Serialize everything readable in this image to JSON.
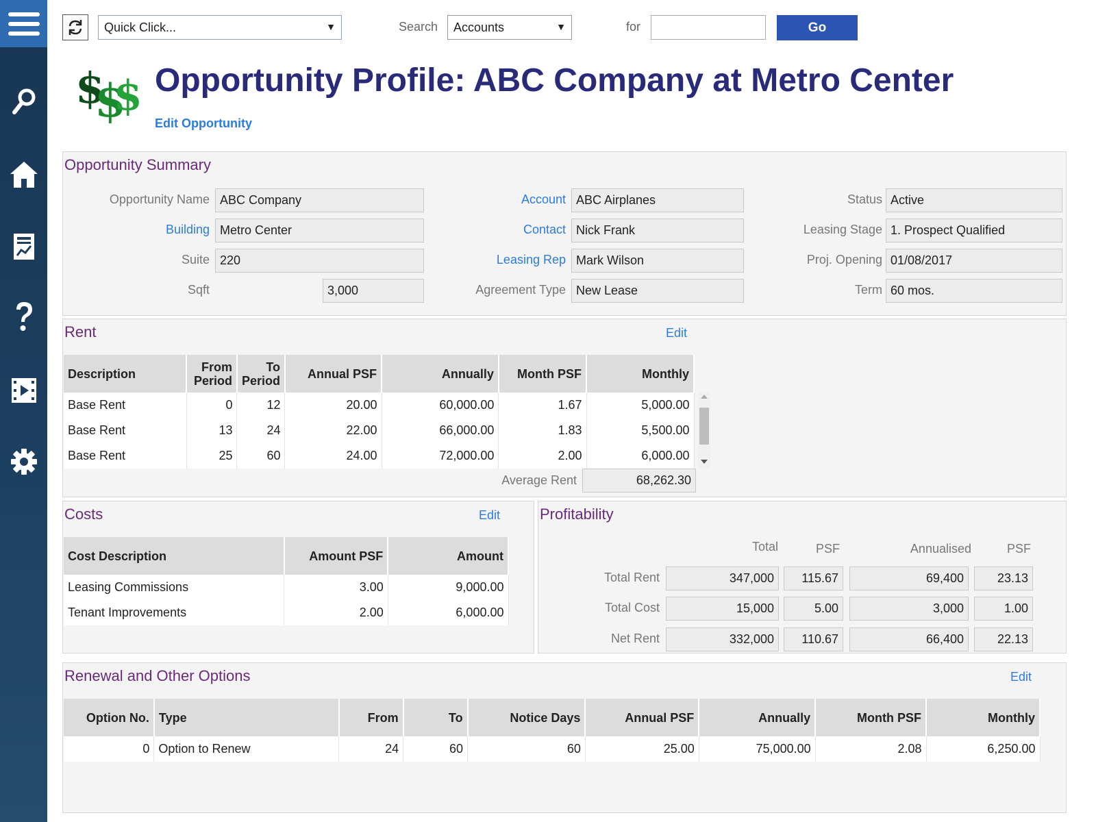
{
  "toolbar": {
    "quick_click": "Quick Click...",
    "search_label": "Search",
    "search_scope": "Accounts",
    "for_label": "for",
    "for_value": "",
    "go_label": "Go"
  },
  "sidebar": {
    "items": [
      "menu-icon",
      "search-icon",
      "home-icon",
      "reports-icon",
      "help-icon",
      "video-icon",
      "settings-icon"
    ]
  },
  "header": {
    "title": "Opportunity Profile: ABC Company at Metro Center",
    "edit_link": "Edit Opportunity"
  },
  "summary": {
    "title": "Opportunity Summary",
    "opportunity_name_label": "Opportunity Name",
    "opportunity_name": "ABC Company",
    "building_label": "Building",
    "building": "Metro Center",
    "suite_label": "Suite",
    "suite": "220",
    "sqft_label": "Sqft",
    "sqft": "3,000",
    "account_label": "Account",
    "account": "ABC Airplanes",
    "contact_label": "Contact",
    "contact": "Nick Frank",
    "leasing_rep_label": "Leasing Rep",
    "leasing_rep": "Mark Wilson",
    "agreement_type_label": "Agreement Type",
    "agreement_type": "New Lease",
    "status_label": "Status",
    "status": "Active",
    "leasing_stage_label": "Leasing Stage",
    "leasing_stage": "1. Prospect Qualified",
    "proj_opening_label": "Proj. Opening",
    "proj_opening": "01/08/2017",
    "term_label": "Term",
    "term": "60 mos."
  },
  "rent": {
    "title": "Rent",
    "edit": "Edit",
    "headers": {
      "description": "Description",
      "from1": "From",
      "from2": "Period",
      "to1": "To",
      "to2": "Period",
      "annual_psf": "Annual PSF",
      "annually": "Annually",
      "month_psf": "Month PSF",
      "monthly": "Monthly"
    },
    "rows": [
      {
        "description": "Base Rent",
        "from": "0",
        "to": "12",
        "annual_psf": "20.00",
        "annually": "60,000.00",
        "month_psf": "1.67",
        "monthly": "5,000.00"
      },
      {
        "description": "Base Rent",
        "from": "13",
        "to": "24",
        "annual_psf": "22.00",
        "annually": "66,000.00",
        "month_psf": "1.83",
        "monthly": "5,500.00"
      },
      {
        "description": "Base Rent",
        "from": "25",
        "to": "60",
        "annual_psf": "24.00",
        "annually": "72,000.00",
        "month_psf": "2.00",
        "monthly": "6,000.00"
      }
    ],
    "average_label": "Average Rent",
    "average_value": "68,262.30"
  },
  "costs": {
    "title": "Costs",
    "edit": "Edit",
    "headers": {
      "description": "Cost Description",
      "amount_psf": "Amount PSF",
      "amount": "Amount"
    },
    "rows": [
      {
        "description": "Leasing Commissions",
        "amount_psf": "3.00",
        "amount": "9,000.00"
      },
      {
        "description": "Tenant Improvements",
        "amount_psf": "2.00",
        "amount": "6,000.00"
      }
    ]
  },
  "profitability": {
    "title": "Profitability",
    "headers": {
      "total": "Total",
      "psf1": "PSF",
      "annualised": "Annualised",
      "psf2": "PSF"
    },
    "rows": [
      {
        "label": "Total Rent",
        "total": "347,000",
        "psf": "115.67",
        "annualised": "69,400",
        "annualised_psf": "23.13"
      },
      {
        "label": "Total Cost",
        "total": "15,000",
        "psf": "5.00",
        "annualised": "3,000",
        "annualised_psf": "1.00"
      },
      {
        "label": "Net Rent",
        "total": "332,000",
        "psf": "110.67",
        "annualised": "66,400",
        "annualised_psf": "22.13"
      }
    ]
  },
  "renewal": {
    "title": "Renewal and Other Options",
    "edit": "Edit",
    "headers": {
      "option_no": "Option No.",
      "type": "Type",
      "from": "From",
      "to": "To",
      "notice_days": "Notice Days",
      "annual_psf": "Annual PSF",
      "annually": "Annually",
      "month_psf": "Month PSF",
      "monthly": "Monthly"
    },
    "rows": [
      {
        "option_no": "0",
        "type": "Option to Renew",
        "from": "24",
        "to": "60",
        "notice_days": "60",
        "annual_psf": "25.00",
        "annually": "75,000.00",
        "month_psf": "2.08",
        "monthly": "6,250.00"
      }
    ]
  },
  "colors": {
    "sidebar": "#1d3e5e",
    "menu_button": "#2f6bb0",
    "title": "#2a2a7a",
    "section_title": "#6a2a7a",
    "link": "#2b7be0",
    "go_button": "#2c54b3"
  }
}
